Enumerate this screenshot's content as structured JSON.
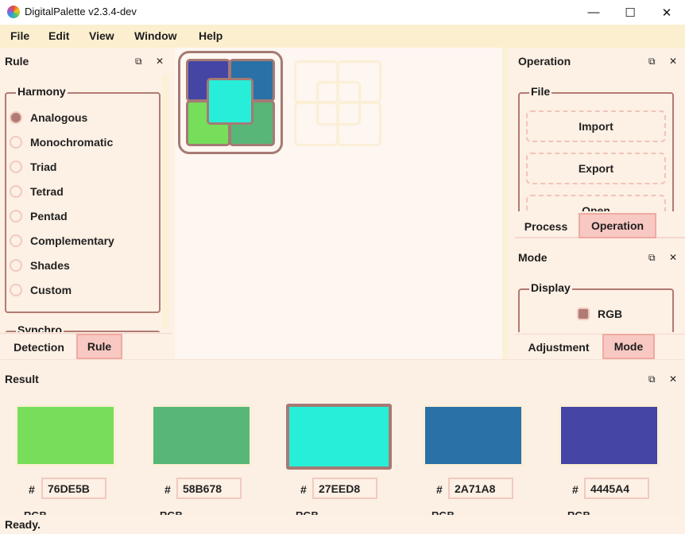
{
  "window": {
    "title": "DigitalPalette v2.3.4-dev",
    "minimize_glyph": "—",
    "maximize_glyph": "☐",
    "close_glyph": "✕"
  },
  "menu": [
    "File",
    "Edit",
    "View",
    "Window",
    "Help"
  ],
  "dock_controls": {
    "float_glyph": "⧉",
    "close_glyph": "✕"
  },
  "rule_panel": {
    "title": "Rule",
    "harmony": {
      "legend": "Harmony",
      "options": [
        "Analogous",
        "Monochromatic",
        "Triad",
        "Tetrad",
        "Pentad",
        "Complementary",
        "Shades",
        "Custom"
      ],
      "selected": "Analogous"
    },
    "next_group_legend": "Synchro",
    "tabs": [
      "Detection",
      "Rule"
    ],
    "active_tab": "Rule"
  },
  "operation_panel": {
    "title": "Operation",
    "file_group": {
      "legend": "File",
      "buttons": [
        "Import",
        "Export",
        "Open"
      ]
    },
    "tabs": [
      "Process",
      "Operation"
    ],
    "active_tab": "Operation"
  },
  "mode_panel": {
    "title": "Mode",
    "display_group": {
      "legend": "Display",
      "options": [
        "RGB"
      ],
      "selected": "RGB"
    },
    "tabs": [
      "Adjustment",
      "Mode"
    ],
    "active_tab": "Mode"
  },
  "canvas": {
    "main_color": "#27EED8",
    "corner_colors": [
      "#4445A4",
      "#2A71A8",
      "#76DE5B",
      "#58B678"
    ]
  },
  "result_panel": {
    "title": "Result",
    "hash_label": "#",
    "mode_label": "RGB",
    "selected_index": 2,
    "colors": [
      {
        "hex": "76DE5B",
        "color": "#76DE5B"
      },
      {
        "hex": "58B678",
        "color": "#58B678"
      },
      {
        "hex": "27EED8",
        "color": "#27EED8"
      },
      {
        "hex": "2A71A8",
        "color": "#2A71A8"
      },
      {
        "hex": "4445A4",
        "color": "#4445A4"
      }
    ]
  },
  "status": "Ready."
}
